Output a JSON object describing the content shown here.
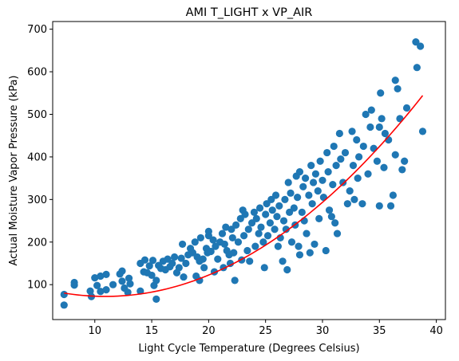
{
  "chart_data": {
    "type": "scatter",
    "title": "AMI T_LIGHT x VP_AIR",
    "xlabel": "Light Cycle Temperature (Degrees Celsius)",
    "ylabel": "Actual Moisture Vapor Pressure (kPa)",
    "xlim": [
      6.3,
      40.8
    ],
    "ylim": [
      18,
      718
    ],
    "x_ticks": [
      10,
      15,
      20,
      25,
      30,
      35,
      40
    ],
    "y_ticks": [
      100,
      200,
      300,
      400,
      500,
      600,
      700
    ],
    "grid": false,
    "legend": "none",
    "marker_color": "#1f77b4",
    "fit_color": "#ff0000",
    "series": [
      {
        "type": "scatter",
        "points": [
          [
            7.3,
            77
          ],
          [
            7.3,
            52
          ],
          [
            8.2,
            105
          ],
          [
            8.2,
            99
          ],
          [
            9.6,
            85
          ],
          [
            9.7,
            72
          ],
          [
            10.0,
            116
          ],
          [
            10.2,
            98
          ],
          [
            10.5,
            120
          ],
          [
            10.5,
            84
          ],
          [
            11.0,
            124
          ],
          [
            11.0,
            88
          ],
          [
            11.6,
            100
          ],
          [
            12.2,
            125
          ],
          [
            12.4,
            108
          ],
          [
            12.4,
            132
          ],
          [
            12.6,
            92
          ],
          [
            12.9,
            82
          ],
          [
            13.0,
            115
          ],
          [
            13.1,
            102
          ],
          [
            14.0,
            150
          ],
          [
            14.0,
            85
          ],
          [
            14.3,
            130
          ],
          [
            14.4,
            158
          ],
          [
            14.6,
            128
          ],
          [
            14.8,
            144
          ],
          [
            15.0,
            122
          ],
          [
            15.1,
            157
          ],
          [
            15.2,
            98
          ],
          [
            15.4,
            110
          ],
          [
            15.4,
            66
          ],
          [
            15.6,
            145
          ],
          [
            15.8,
            138
          ],
          [
            16.0,
            155
          ],
          [
            16.2,
            135
          ],
          [
            16.4,
            160
          ],
          [
            16.6,
            142
          ],
          [
            16.8,
            150
          ],
          [
            17.0,
            165
          ],
          [
            17.2,
            128
          ],
          [
            17.4,
            140
          ],
          [
            17.6,
            162
          ],
          [
            17.7,
            195
          ],
          [
            17.8,
            118
          ],
          [
            18.0,
            150
          ],
          [
            18.2,
            170
          ],
          [
            18.4,
            185
          ],
          [
            18.6,
            175
          ],
          [
            18.8,
            200
          ],
          [
            18.9,
            120
          ],
          [
            19.0,
            165
          ],
          [
            19.2,
            155
          ],
          [
            19.2,
            110
          ],
          [
            19.3,
            210
          ],
          [
            19.5,
            160
          ],
          [
            19.6,
            140
          ],
          [
            19.8,
            185
          ],
          [
            19.9,
            175
          ],
          [
            20.0,
            215
          ],
          [
            20.0,
            225
          ],
          [
            20.2,
            178
          ],
          [
            20.4,
            205
          ],
          [
            20.5,
            130
          ],
          [
            20.6,
            190
          ],
          [
            20.8,
            160
          ],
          [
            21.0,
            200
          ],
          [
            21.2,
            220
          ],
          [
            21.3,
            140
          ],
          [
            21.4,
            195
          ],
          [
            21.5,
            235
          ],
          [
            21.6,
            180
          ],
          [
            21.8,
            170
          ],
          [
            21.9,
            150
          ],
          [
            22.0,
            230
          ],
          [
            22.1,
            210
          ],
          [
            22.2,
            175
          ],
          [
            22.3,
            110
          ],
          [
            22.4,
            240
          ],
          [
            22.6,
            200
          ],
          [
            22.8,
            255
          ],
          [
            22.9,
            158
          ],
          [
            23.0,
            275
          ],
          [
            23.1,
            215
          ],
          [
            23.2,
            265
          ],
          [
            23.4,
            180
          ],
          [
            23.5,
            230
          ],
          [
            23.6,
            155
          ],
          [
            23.8,
            245
          ],
          [
            24.0,
            270
          ],
          [
            24.1,
            190
          ],
          [
            24.2,
            255
          ],
          [
            24.4,
            220
          ],
          [
            24.5,
            280
          ],
          [
            24.6,
            235
          ],
          [
            24.8,
            200
          ],
          [
            24.9,
            140
          ],
          [
            25.0,
            265
          ],
          [
            25.1,
            290
          ],
          [
            25.2,
            215
          ],
          [
            25.4,
            245
          ],
          [
            25.5,
            300
          ],
          [
            25.6,
            275
          ],
          [
            25.8,
            230
          ],
          [
            25.9,
            310
          ],
          [
            26.0,
            260
          ],
          [
            26.1,
            190
          ],
          [
            26.2,
            285
          ],
          [
            26.3,
            210
          ],
          [
            26.5,
            155
          ],
          [
            26.6,
            250
          ],
          [
            26.7,
            300
          ],
          [
            26.8,
            230
          ],
          [
            26.9,
            135
          ],
          [
            27.0,
            340
          ],
          [
            27.1,
            270
          ],
          [
            27.2,
            315
          ],
          [
            27.3,
            200
          ],
          [
            27.5,
            280
          ],
          [
            27.6,
            240
          ],
          [
            27.7,
            355
          ],
          [
            27.8,
            305
          ],
          [
            27.9,
            190
          ],
          [
            28.0,
            365
          ],
          [
            28.0,
            170
          ],
          [
            28.2,
            270
          ],
          [
            28.3,
            330
          ],
          [
            28.4,
            250
          ],
          [
            28.5,
            350
          ],
          [
            28.6,
            220
          ],
          [
            28.8,
            310
          ],
          [
            28.9,
            175
          ],
          [
            29.0,
            380
          ],
          [
            29.1,
            290
          ],
          [
            29.2,
            340
          ],
          [
            29.3,
            195
          ],
          [
            29.4,
            360
          ],
          [
            29.6,
            320
          ],
          [
            29.7,
            255
          ],
          [
            29.8,
            390
          ],
          [
            30.0,
            345
          ],
          [
            30.1,
            305
          ],
          [
            30.3,
            180
          ],
          [
            30.4,
            410
          ],
          [
            30.5,
            365
          ],
          [
            30.6,
            275
          ],
          [
            30.8,
            260
          ],
          [
            30.9,
            335
          ],
          [
            31.0,
            425
          ],
          [
            31.1,
            245
          ],
          [
            31.2,
            380
          ],
          [
            31.3,
            220
          ],
          [
            31.5,
            455
          ],
          [
            31.6,
            395
          ],
          [
            31.8,
            340
          ],
          [
            32.0,
            410
          ],
          [
            32.2,
            290
          ],
          [
            32.4,
            320
          ],
          [
            32.6,
            460
          ],
          [
            32.7,
            380
          ],
          [
            32.8,
            300
          ],
          [
            33.0,
            440
          ],
          [
            33.1,
            350
          ],
          [
            33.2,
            400
          ],
          [
            33.5,
            290
          ],
          [
            33.6,
            425
          ],
          [
            33.8,
            500
          ],
          [
            34.0,
            360
          ],
          [
            34.2,
            470
          ],
          [
            34.3,
            510
          ],
          [
            34.5,
            420
          ],
          [
            34.8,
            390
          ],
          [
            35.0,
            470
          ],
          [
            35.0,
            285
          ],
          [
            35.1,
            550
          ],
          [
            35.2,
            490
          ],
          [
            35.4,
            375
          ],
          [
            35.5,
            455
          ],
          [
            35.8,
            440
          ],
          [
            36.0,
            285
          ],
          [
            36.2,
            310
          ],
          [
            36.4,
            405
          ],
          [
            36.4,
            580
          ],
          [
            36.6,
            560
          ],
          [
            36.8,
            490
          ],
          [
            37.0,
            370
          ],
          [
            37.2,
            390
          ],
          [
            37.4,
            515
          ],
          [
            38.2,
            670
          ],
          [
            38.3,
            610
          ],
          [
            38.6,
            660
          ],
          [
            38.8,
            460
          ]
        ]
      },
      {
        "type": "line",
        "name": "",
        "fit_coeffs": [
          144.5,
          -13.23,
          0.6064
        ],
        "x_range": [
          7.3,
          38.8
        ]
      }
    ]
  }
}
